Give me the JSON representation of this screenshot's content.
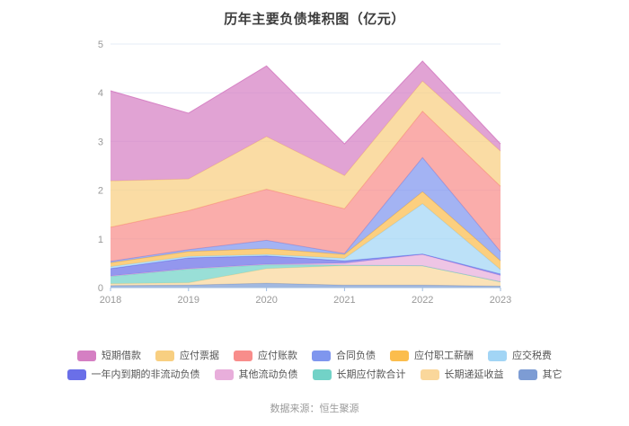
{
  "title": "历年主要负债堆积图（亿元）",
  "footer": {
    "source_label": "数据来源：恒生聚源"
  },
  "chart_data": {
    "type": "area",
    "stacked": true,
    "title": "历年主要负债堆积图（亿元）",
    "xlabel": "",
    "ylabel": "",
    "categories": [
      "2018",
      "2019",
      "2020",
      "2021",
      "2022",
      "2023"
    ],
    "yticks": [
      0,
      1,
      2,
      3,
      4,
      5
    ],
    "ylim": [
      0,
      5
    ],
    "grid": true,
    "legend_position": "bottom",
    "stack_note": "series listed in legend order; stacked bottom-to-top in reverse of this order",
    "series": [
      {
        "name": "短期借款",
        "color": "#d57fc3",
        "values": [
          1.85,
          1.35,
          1.45,
          0.65,
          0.41,
          0.15
        ]
      },
      {
        "name": "应付票据",
        "color": "#f8cf81",
        "values": [
          0.95,
          0.65,
          1.08,
          0.68,
          0.62,
          0.72
        ]
      },
      {
        "name": "应付账款",
        "color": "#f88d8b",
        "values": [
          0.7,
          0.8,
          1.05,
          0.92,
          0.95,
          1.34
        ]
      },
      {
        "name": "合同负债",
        "color": "#7f96ee",
        "values": [
          0.03,
          0.04,
          0.17,
          0.02,
          0.7,
          0.19
        ]
      },
      {
        "name": "应付职工薪酬",
        "color": "#fbbd4d",
        "values": [
          0.08,
          0.1,
          0.12,
          0.08,
          0.25,
          0.18
        ]
      },
      {
        "name": "应交税费",
        "color": "#a2d5f5",
        "values": [
          0.04,
          0.03,
          0.03,
          0.05,
          1.03,
          0.09
        ]
      },
      {
        "name": "一年内到期的非流动负债",
        "color": "#6a6fe8",
        "values": [
          0.15,
          0.22,
          0.17,
          0.05,
          0.01,
          0.03
        ]
      },
      {
        "name": "其他流动负债",
        "color": "#e8aedb",
        "values": [
          0.01,
          0.01,
          0.01,
          0.04,
          0.23,
          0.13
        ]
      },
      {
        "name": "长期应付款合计",
        "color": "#72d2c7",
        "values": [
          0.15,
          0.28,
          0.08,
          0.01,
          0.0,
          0.0
        ]
      },
      {
        "name": "长期递延收益",
        "color": "#fad79b",
        "values": [
          0.04,
          0.05,
          0.3,
          0.4,
          0.4,
          0.09
        ]
      },
      {
        "name": "其它",
        "color": "#7d9cd4",
        "values": [
          0.04,
          0.05,
          0.09,
          0.05,
          0.05,
          0.03
        ]
      }
    ],
    "theme": {
      "grid_color": "#e4ecf7",
      "axis_color": "#a3bede",
      "axis_label_color": "#999999",
      "title_color": "#3c3c3c",
      "legend_label_color": "#555555",
      "area_opacity": 0.72
    }
  }
}
